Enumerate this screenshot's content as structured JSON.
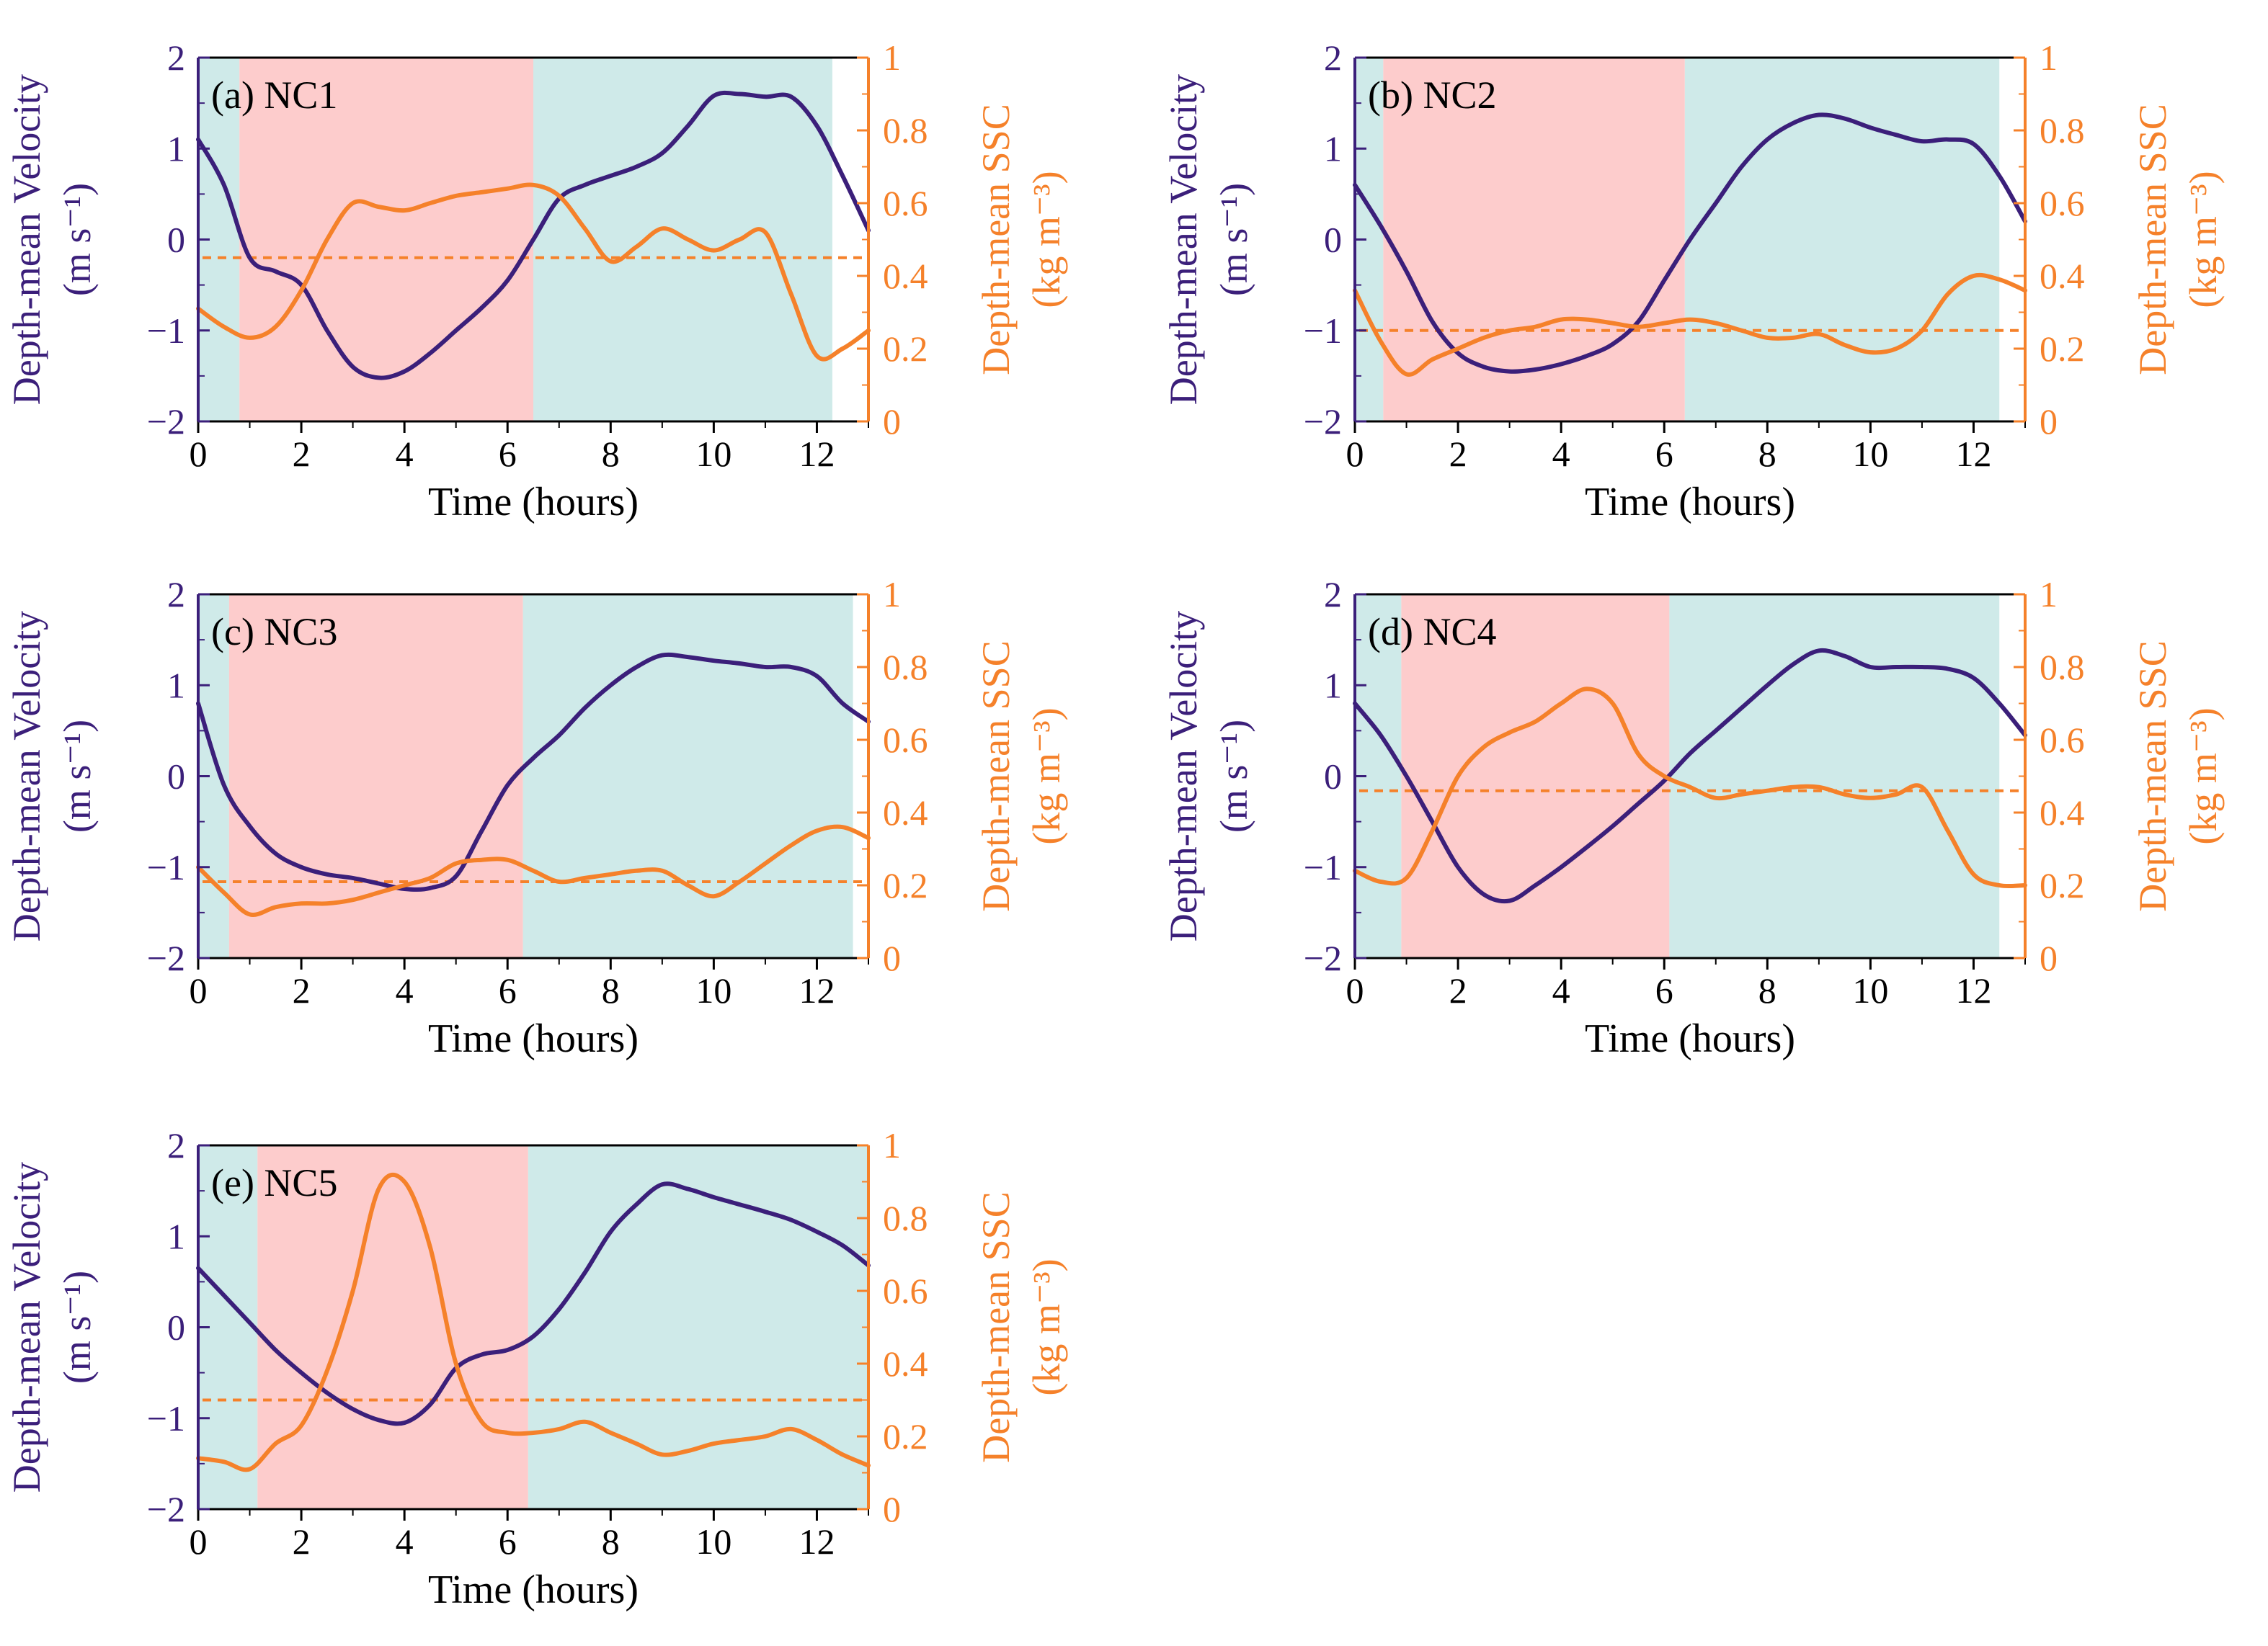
{
  "colors": {
    "velocity": "#3b1f7a",
    "ssc": "#f5812a",
    "flood_bg": "#fdcccc",
    "ebb_bg": "#cfeae9"
  },
  "shared": {
    "xlabel": "Time (hours)",
    "ylabel_left": "Depth-mean Velocity",
    "ylabel_left_units": "(m s⁻¹)",
    "ylabel_right": "Depth-mean SSC",
    "ylabel_right_units": "(kg m⁻³)",
    "xticks": [
      "0",
      "2",
      "4",
      "6",
      "8",
      "10",
      "12"
    ],
    "yticks_left": [
      "−2",
      "−1",
      "0",
      "1",
      "2"
    ],
    "yticks_right": [
      "0",
      "0.2",
      "0.4",
      "0.6",
      "0.8",
      "1"
    ]
  },
  "chart_data": [
    {
      "type": "line",
      "title": "(a) NC1",
      "xlim": [
        0,
        13
      ],
      "ylim_left": [
        -2,
        2
      ],
      "ylim_right": [
        0,
        1
      ],
      "shading": [
        {
          "phase": "ebb",
          "from": 0,
          "to": 0.8
        },
        {
          "phase": "flood",
          "from": 0.8,
          "to": 6.5
        },
        {
          "phase": "ebb",
          "from": 6.5,
          "to": 12.3
        }
      ],
      "ssc_reference": 0.45,
      "series": [
        {
          "name": "Depth-mean Velocity",
          "axis": "left",
          "x": [
            0,
            0.5,
            1,
            1.5,
            2,
            2.5,
            3,
            3.5,
            4,
            4.5,
            5,
            5.5,
            6,
            6.5,
            7,
            7.5,
            8,
            8.5,
            9,
            9.5,
            10,
            10.5,
            11,
            11.5,
            12,
            12.5,
            13
          ],
          "y": [
            1.1,
            0.6,
            -0.2,
            -0.35,
            -0.5,
            -1.0,
            -1.4,
            -1.52,
            -1.45,
            -1.25,
            -1.0,
            -0.75,
            -0.45,
            0.0,
            0.45,
            0.6,
            0.7,
            0.8,
            0.95,
            1.25,
            1.58,
            1.6,
            1.57,
            1.57,
            1.25,
            0.7,
            0.1
          ]
        },
        {
          "name": "Depth-mean SSC",
          "axis": "right",
          "x": [
            0,
            0.5,
            1,
            1.5,
            2,
            2.5,
            3,
            3.5,
            4,
            4.5,
            5,
            5.5,
            6,
            6.5,
            7,
            7.5,
            8,
            8.5,
            9,
            9.5,
            10,
            10.5,
            11,
            11.5,
            12,
            12.5,
            13
          ],
          "y": [
            0.31,
            0.26,
            0.23,
            0.26,
            0.36,
            0.5,
            0.6,
            0.59,
            0.58,
            0.6,
            0.62,
            0.63,
            0.64,
            0.65,
            0.62,
            0.53,
            0.44,
            0.48,
            0.53,
            0.5,
            0.47,
            0.5,
            0.52,
            0.35,
            0.18,
            0.2,
            0.25
          ]
        }
      ]
    },
    {
      "type": "line",
      "title": "(b) NC2",
      "xlim": [
        0,
        13
      ],
      "ylim_left": [
        -2,
        2
      ],
      "ylim_right": [
        0,
        1
      ],
      "shading": [
        {
          "phase": "ebb",
          "from": 0,
          "to": 0.55
        },
        {
          "phase": "flood",
          "from": 0.55,
          "to": 6.4
        },
        {
          "phase": "ebb",
          "from": 6.4,
          "to": 12.5
        }
      ],
      "ssc_reference": 0.25,
      "series": [
        {
          "name": "Depth-mean Velocity",
          "axis": "left",
          "x": [
            0,
            0.5,
            1,
            1.5,
            2,
            2.5,
            3,
            3.5,
            4,
            4.5,
            5,
            5.5,
            6,
            6.5,
            7,
            7.5,
            8,
            8.5,
            9,
            9.5,
            10,
            10.5,
            11,
            11.5,
            12,
            12.5,
            13
          ],
          "y": [
            0.6,
            0.15,
            -0.35,
            -0.9,
            -1.25,
            -1.4,
            -1.45,
            -1.43,
            -1.37,
            -1.28,
            -1.15,
            -0.9,
            -0.45,
            0.0,
            0.4,
            0.8,
            1.1,
            1.28,
            1.37,
            1.33,
            1.23,
            1.15,
            1.08,
            1.1,
            1.05,
            0.7,
            0.2
          ]
        },
        {
          "name": "Depth-mean SSC",
          "axis": "right",
          "x": [
            0,
            0.5,
            1,
            1.5,
            2,
            2.5,
            3,
            3.5,
            4,
            4.5,
            5,
            5.5,
            6,
            6.5,
            7,
            7.5,
            8,
            8.5,
            9,
            9.5,
            10,
            10.5,
            11,
            11.5,
            12,
            12.5,
            13
          ],
          "y": [
            0.36,
            0.22,
            0.13,
            0.17,
            0.2,
            0.23,
            0.25,
            0.26,
            0.28,
            0.28,
            0.27,
            0.26,
            0.27,
            0.28,
            0.27,
            0.25,
            0.23,
            0.23,
            0.24,
            0.21,
            0.19,
            0.2,
            0.25,
            0.35,
            0.4,
            0.39,
            0.36
          ]
        }
      ]
    },
    {
      "type": "line",
      "title": "(c) NC3",
      "xlim": [
        0,
        13
      ],
      "ylim_left": [
        -2,
        2
      ],
      "ylim_right": [
        0,
        1
      ],
      "shading": [
        {
          "phase": "ebb",
          "from": 0,
          "to": 0.6
        },
        {
          "phase": "flood",
          "from": 0.6,
          "to": 6.3
        },
        {
          "phase": "ebb",
          "from": 6.3,
          "to": 12.7
        }
      ],
      "ssc_reference": 0.21,
      "series": [
        {
          "name": "Depth-mean Velocity",
          "axis": "left",
          "x": [
            0,
            0.5,
            1,
            1.5,
            2,
            2.5,
            3,
            3.5,
            4,
            4.5,
            5,
            5.5,
            6,
            6.5,
            7,
            7.5,
            8,
            8.5,
            9,
            9.5,
            10,
            10.5,
            11,
            11.5,
            12,
            12.5,
            13
          ],
          "y": [
            0.8,
            -0.1,
            -0.55,
            -0.85,
            -1.0,
            -1.08,
            -1.12,
            -1.18,
            -1.24,
            -1.23,
            -1.1,
            -0.6,
            -0.1,
            0.2,
            0.45,
            0.75,
            1.0,
            1.2,
            1.33,
            1.31,
            1.27,
            1.24,
            1.2,
            1.2,
            1.1,
            0.8,
            0.6
          ]
        },
        {
          "name": "Depth-mean SSC",
          "axis": "right",
          "x": [
            0,
            0.5,
            1,
            1.5,
            2,
            2.5,
            3,
            3.5,
            4,
            4.5,
            5,
            5.5,
            6,
            6.5,
            7,
            7.5,
            8,
            8.5,
            9,
            9.5,
            10,
            10.5,
            11,
            11.5,
            12,
            12.5,
            13
          ],
          "y": [
            0.25,
            0.18,
            0.12,
            0.14,
            0.15,
            0.15,
            0.16,
            0.18,
            0.2,
            0.22,
            0.26,
            0.27,
            0.27,
            0.24,
            0.21,
            0.22,
            0.23,
            0.24,
            0.24,
            0.2,
            0.17,
            0.21,
            0.26,
            0.31,
            0.35,
            0.36,
            0.33
          ]
        }
      ]
    },
    {
      "type": "line",
      "title": "(d) NC4",
      "xlim": [
        0,
        13
      ],
      "ylim_left": [
        -2,
        2
      ],
      "ylim_right": [
        0,
        1
      ],
      "shading": [
        {
          "phase": "ebb",
          "from": 0,
          "to": 0.9
        },
        {
          "phase": "flood",
          "from": 0.9,
          "to": 6.1
        },
        {
          "phase": "ebb",
          "from": 6.1,
          "to": 12.5
        }
      ],
      "ssc_reference": 0.46,
      "series": [
        {
          "name": "Depth-mean Velocity",
          "axis": "left",
          "x": [
            0,
            0.5,
            1,
            1.5,
            2,
            2.5,
            3,
            3.5,
            4,
            4.5,
            5,
            5.5,
            6,
            6.5,
            7,
            7.5,
            8,
            8.5,
            9,
            9.5,
            10,
            10.5,
            11,
            11.5,
            12,
            12.5,
            13
          ],
          "y": [
            0.8,
            0.45,
            0.0,
            -0.5,
            -1.0,
            -1.3,
            -1.37,
            -1.2,
            -1.0,
            -0.78,
            -0.55,
            -0.3,
            -0.05,
            0.25,
            0.5,
            0.75,
            1.0,
            1.23,
            1.38,
            1.32,
            1.2,
            1.2,
            1.2,
            1.18,
            1.08,
            0.8,
            0.45
          ]
        },
        {
          "name": "Depth-mean SSC",
          "axis": "right",
          "x": [
            0,
            0.5,
            1,
            1.5,
            2,
            2.5,
            3,
            3.5,
            4,
            4.5,
            5,
            5.5,
            6,
            6.5,
            7,
            7.5,
            8,
            8.5,
            9,
            9.5,
            10,
            10.5,
            11,
            11.5,
            12,
            12.5,
            13
          ],
          "y": [
            0.24,
            0.21,
            0.22,
            0.35,
            0.5,
            0.58,
            0.62,
            0.65,
            0.7,
            0.74,
            0.7,
            0.56,
            0.5,
            0.47,
            0.44,
            0.45,
            0.46,
            0.47,
            0.47,
            0.45,
            0.44,
            0.45,
            0.47,
            0.35,
            0.23,
            0.2,
            0.2
          ]
        }
      ]
    },
    {
      "type": "line",
      "title": "(e) NC5",
      "xlim": [
        0,
        13
      ],
      "ylim_left": [
        -2,
        2
      ],
      "ylim_right": [
        0,
        1
      ],
      "shading": [
        {
          "phase": "ebb",
          "from": 0,
          "to": 1.15
        },
        {
          "phase": "flood",
          "from": 1.15,
          "to": 6.4
        },
        {
          "phase": "ebb",
          "from": 6.4,
          "to": 13
        }
      ],
      "ssc_reference": 0.3,
      "series": [
        {
          "name": "Depth-mean Velocity",
          "axis": "left",
          "x": [
            0,
            0.5,
            1,
            1.5,
            2,
            2.5,
            3,
            3.5,
            4,
            4.5,
            5,
            5.5,
            6,
            6.5,
            7,
            7.5,
            8,
            8.5,
            9,
            9.5,
            10,
            10.5,
            11,
            11.5,
            12,
            12.5,
            13
          ],
          "y": [
            0.65,
            0.35,
            0.05,
            -0.25,
            -0.5,
            -0.72,
            -0.9,
            -1.02,
            -1.05,
            -0.85,
            -0.45,
            -0.3,
            -0.25,
            -0.1,
            0.2,
            0.6,
            1.05,
            1.35,
            1.57,
            1.52,
            1.43,
            1.35,
            1.27,
            1.18,
            1.05,
            0.9,
            0.68
          ]
        },
        {
          "name": "Depth-mean SSC",
          "axis": "right",
          "x": [
            0,
            0.5,
            1,
            1.5,
            2,
            2.5,
            3,
            3.5,
            4,
            4.5,
            5,
            5.5,
            6,
            6.5,
            7,
            7.5,
            8,
            8.5,
            9,
            9.5,
            10,
            10.5,
            11,
            11.5,
            12,
            12.5,
            13
          ],
          "y": [
            0.14,
            0.13,
            0.11,
            0.18,
            0.23,
            0.38,
            0.6,
            0.88,
            0.9,
            0.72,
            0.4,
            0.24,
            0.21,
            0.21,
            0.22,
            0.24,
            0.21,
            0.18,
            0.15,
            0.16,
            0.18,
            0.19,
            0.2,
            0.22,
            0.19,
            0.15,
            0.12
          ]
        }
      ]
    }
  ]
}
